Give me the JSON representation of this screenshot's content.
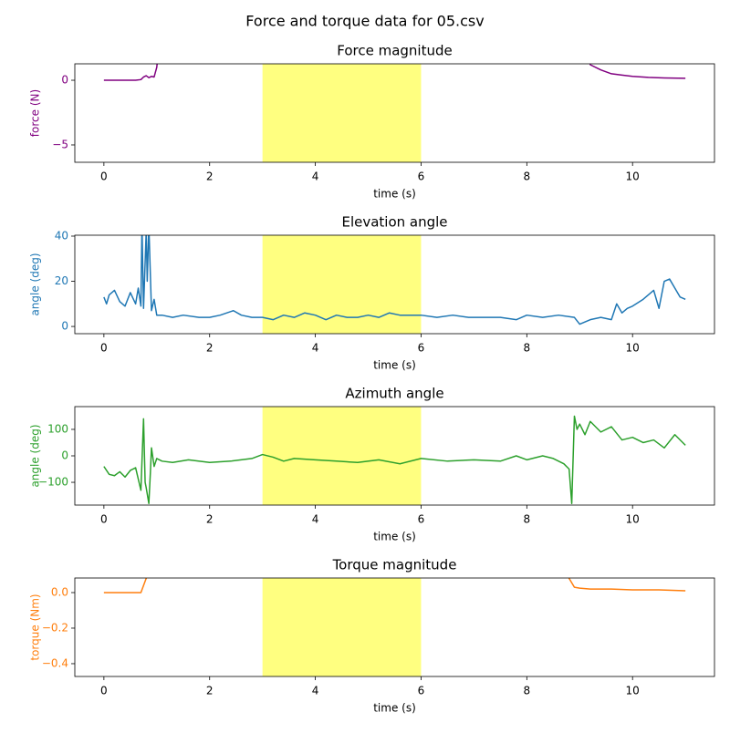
{
  "title": "Force and torque data for 05.csv",
  "chart_data": [
    {
      "type": "line",
      "title": "Force magnitude",
      "xlabel": "time (s)",
      "ylabel": "force (N)",
      "color": "#800080",
      "x": [
        0,
        0.3,
        0.6,
        0.7,
        0.75,
        0.8,
        0.85,
        0.9,
        0.95,
        1.0,
        1.05,
        9.1,
        9.2,
        9.4,
        9.6,
        9.8,
        10,
        10.3,
        10.6,
        11
      ],
      "values": [
        0,
        0,
        0,
        0.05,
        0.25,
        0.35,
        0.2,
        0.3,
        0.25,
        1.0,
        3,
        3,
        1.2,
        0.8,
        0.5,
        0.4,
        0.3,
        0.22,
        0.18,
        0.15
      ],
      "xlim": [
        -0.55,
        11.55
      ],
      "ylim": [
        -6.34,
        1.27
      ],
      "xticks": [
        0,
        2,
        4,
        6,
        8,
        10
      ],
      "yticks": [
        {
          "value": -5,
          "label": "−5"
        },
        0
      ],
      "highlight": {
        "x": [
          3,
          6
        ],
        "color": "#ffff80"
      }
    },
    {
      "type": "line",
      "title": "Elevation angle",
      "xlabel": "time (s)",
      "ylabel": "angle (deg)",
      "color": "#1f77b4",
      "x": [
        0,
        0.05,
        0.1,
        0.2,
        0.3,
        0.4,
        0.5,
        0.6,
        0.65,
        0.7,
        0.72,
        0.75,
        0.8,
        0.82,
        0.85,
        0.9,
        0.95,
        1.0,
        1.1,
        1.3,
        1.5,
        1.8,
        2.0,
        2.2,
        2.45,
        2.6,
        2.8,
        3.0,
        3.2,
        3.4,
        3.6,
        3.8,
        4.0,
        4.2,
        4.4,
        4.6,
        4.8,
        5.0,
        5.2,
        5.4,
        5.6,
        5.8,
        6.0,
        6.3,
        6.6,
        6.9,
        7.2,
        7.5,
        7.8,
        8.0,
        8.3,
        8.6,
        8.9,
        9.0,
        9.2,
        9.4,
        9.6,
        9.7,
        9.8,
        9.9,
        10.0,
        10.2,
        10.4,
        10.5,
        10.6,
        10.7,
        10.8,
        10.9,
        11.0
      ],
      "values": [
        13,
        10,
        14,
        16,
        11,
        9,
        15,
        10,
        17,
        9,
        45,
        8,
        42,
        20,
        45,
        7,
        12,
        5,
        5,
        4,
        5,
        4,
        4,
        5,
        7,
        5,
        4,
        4,
        3,
        5,
        4,
        6,
        5,
        3,
        5,
        4,
        4,
        5,
        4,
        6,
        5,
        5,
        5,
        4,
        5,
        4,
        4,
        4,
        3,
        5,
        4,
        5,
        4,
        1,
        3,
        4,
        3,
        10,
        6,
        8,
        9,
        12,
        16,
        8,
        20,
        21,
        17,
        13,
        12
      ],
      "xlim": [
        -0.55,
        11.55
      ],
      "ylim": [
        -3.2,
        40.4
      ],
      "xticks": [
        0,
        2,
        4,
        6,
        8,
        10
      ],
      "yticks": [
        0,
        20,
        40
      ],
      "highlight": {
        "x": [
          3,
          6
        ],
        "color": "#ffff80"
      }
    },
    {
      "type": "line",
      "title": "Azimuth angle",
      "xlabel": "time (s)",
      "ylabel": "angle (deg)",
      "color": "#2ca02c",
      "x": [
        0,
        0.1,
        0.2,
        0.3,
        0.4,
        0.5,
        0.6,
        0.7,
        0.75,
        0.78,
        0.8,
        0.85,
        0.88,
        0.9,
        0.95,
        1.0,
        1.1,
        1.3,
        1.6,
        2.0,
        2.4,
        2.8,
        3.0,
        3.2,
        3.4,
        3.6,
        4.0,
        4.4,
        4.8,
        5.2,
        5.6,
        6.0,
        6.5,
        7.0,
        7.5,
        7.8,
        8.0,
        8.3,
        8.5,
        8.7,
        8.8,
        8.85,
        8.9,
        8.95,
        9.0,
        9.1,
        9.2,
        9.4,
        9.6,
        9.8,
        10.0,
        10.2,
        10.4,
        10.6,
        10.8,
        11.0
      ],
      "values": [
        -40,
        -70,
        -75,
        -60,
        -80,
        -55,
        -45,
        -130,
        140,
        -100,
        -120,
        -180,
        -60,
        30,
        -40,
        -10,
        -20,
        -25,
        -15,
        -25,
        -20,
        -10,
        5,
        -5,
        -20,
        -10,
        -15,
        -20,
        -25,
        -15,
        -30,
        -10,
        -20,
        -15,
        -20,
        0,
        -15,
        0,
        -10,
        -30,
        -50,
        -180,
        150,
        100,
        120,
        80,
        130,
        90,
        110,
        60,
        70,
        50,
        60,
        30,
        80,
        40
      ],
      "xlim": [
        -0.55,
        11.55
      ],
      "ylim": [
        -186,
        186
      ],
      "xticks": [
        0,
        2,
        4,
        6,
        8,
        10
      ],
      "yticks": [
        {
          "value": -100,
          "label": "−100"
        },
        0,
        100
      ],
      "highlight": {
        "x": [
          3,
          6
        ],
        "color": "#ffff80"
      }
    },
    {
      "type": "line",
      "title": "Torque magnitude",
      "xlabel": "time (s)",
      "ylabel": "torque (Nm)",
      "color": "#ff7f0e",
      "x": [
        0,
        0.3,
        0.6,
        0.7,
        0.8,
        0.85,
        8.7,
        8.8,
        8.9,
        9.0,
        9.2,
        9.6,
        10.0,
        10.5,
        11.0
      ],
      "values": [
        0,
        0,
        0,
        0,
        0.08,
        0.3,
        0.3,
        0.08,
        0.03,
        0.025,
        0.02,
        0.02,
        0.015,
        0.015,
        0.01
      ],
      "xlim": [
        -0.55,
        11.55
      ],
      "ylim": [
        -0.472,
        0.082
      ],
      "xticks": [
        0,
        2,
        4,
        6,
        8,
        10
      ],
      "yticks": [
        {
          "value": -0.4,
          "label": "−0.4"
        },
        {
          "value": -0.2,
          "label": "−0.2"
        },
        {
          "value": 0,
          "label": "0.0"
        }
      ],
      "highlight": {
        "x": [
          3,
          6
        ],
        "color": "#ffff80"
      }
    }
  ]
}
